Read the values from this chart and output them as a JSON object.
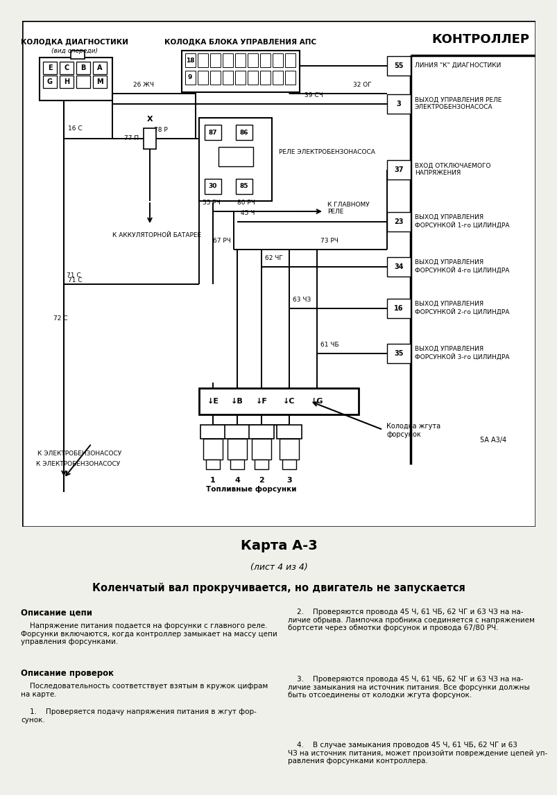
{
  "bg_color": "#f0f0eb",
  "diagram_bg": "#ffffff",
  "title_kontroller": "КОНТРОЛЛЕР",
  "diag_block_title": "КОЛОДКА ДИАГНОСТИКИ",
  "diag_block_subtitle": "(вид спереди)",
  "aps_block_title": "КОЛОДКА БЛОКА УПРАВЛЕНИЯ АПС",
  "relay_label": "РЕЛЕ ЭЛЕКТРОБЕНЗОНАСОСА",
  "battery_label": "К АККУЛЯТОРНОЙ БАТАРЕЕ",
  "pump_label": "К ЭЛЕКТРОБЕНЗОНАСОСУ",
  "injectors_label": "Топливные форсунки",
  "harness_label": "Колодка жгута\nфорсунок",
  "page_ref": "5А А3/4",
  "w_26zh": "26 ЖЧ",
  "w_32og": "32 ОГ",
  "w_78p": "78 Р",
  "w_39sch": "39 СЧ",
  "w_16c": "16 С",
  "w_77p": "77 П",
  "w_71c": "71 С",
  "w_72c": "72 С",
  "w_55rch": "55 РЧ",
  "w_80rch": "80 РЧ",
  "w_67rch": "67 РЧ",
  "w_73rch": "73 РЧ",
  "w_45ch": "45 Ч",
  "w_62chg": "62 ЧГ",
  "w_63chz": "63 ЧЗ",
  "w_61chb": "61 ЧБ",
  "card_title": "Карта А-3",
  "card_subtitle": "(лист 4 из 4)",
  "page_title": "Коленчатый вал прокручивается, но двигатель не запускается",
  "s1_title": "Описание цепи",
  "s1_body": "    Напряжение питания подается на форсунки с главного реле.\nФорсунки включаются, когда контроллер замыкает на массу цепи\nуправления форсунками.",
  "s2_title": "Описание проверок",
  "s2_body": "    Последовательность соответствует взятым в кружок цифрам\nна карте.",
  "c1_text": "    1.    Проверяется подачу напряжения питания в жгут фор-\nсунок.",
  "c2_text": "    2.    Проверяются провода 45 Ч, 61 ЧБ, 62 ЧГ и 63 ЧЗ на на-\nличие обрыва. Лампочка пробника соединяется с напряжением\nбортсети через обмотки форсунок и провода 67/80 РЧ.",
  "c3_text": "    3.    Проверяются провода 45 Ч, 61 ЧБ, 62 ЧГ и 63 ЧЗ на на-\nличие замыкания на источник питания. Все форсунки должны\nбыть отсоединены от колодки жгута форсунок.",
  "c4_text": "    4.    В случае замыкания проводов 45 Ч, 61 ЧБ, 62 ЧГ и 63\nЧЗ на источник питания, может произойти повреждение цепей уп-\nравления форсунками контроллера."
}
